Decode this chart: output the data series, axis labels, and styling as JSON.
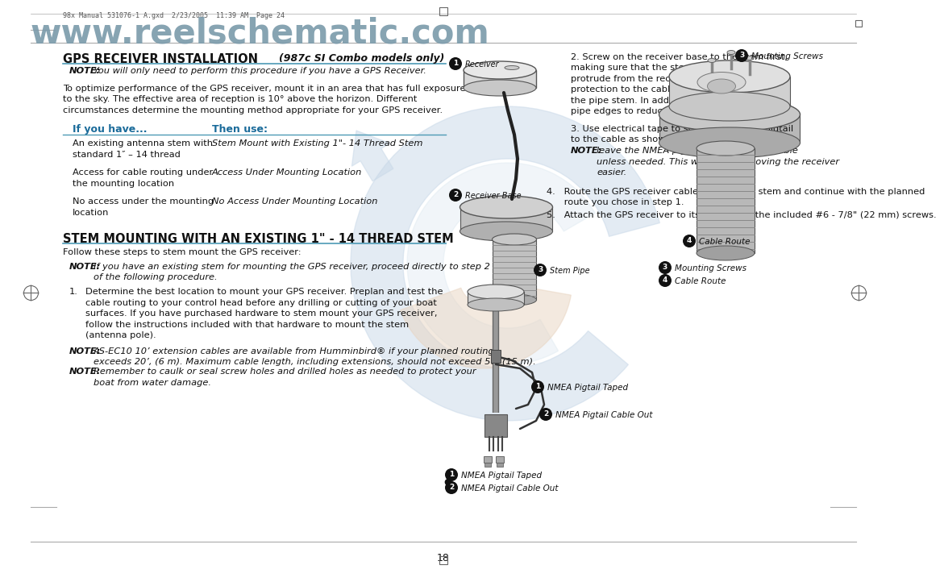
{
  "page_bg": "#ffffff",
  "header_watermark_text": "www.reelschematic.com",
  "header_watermark_color": "#7a9aaa",
  "header_file_text": "98x Manual 531076-1 A.gxd  2/23/2005  11:39 AM  Page 24",
  "header_file_color": "#555555",
  "title1": "GPS RECEIVER INSTALLATION",
  "title1_right": "(987c SI Combo models only)",
  "title2": "STEM MOUNTING WITH AN EXISTING 1\" - 14 THREAD STEM",
  "underline_color": "#4d9ab5",
  "note_label": "NOTE:",
  "note1_text": "You will only need to perform this procedure if you have a GPS Receiver.",
  "body1_line1": "To optimize performance of the GPS receiver, mount it in an area that has full exposure",
  "body1_line2": "to the sky. The effective area of reception is 10° above the horizon. Different",
  "body1_line3": "circumstances determine the mounting method appropriate for your GPS receiver.",
  "table_header_left": "If you have...",
  "table_header_right": "Then use:",
  "table_header_color": "#1a6b9a",
  "table_rows": [
    [
      "An existing antenna stem with",
      "Stem Mount with Existing 1\"- 14 Thread Stem",
      "standard 1\" – 14 thread",
      ""
    ],
    [
      "Access for cable routing under",
      "Access Under Mounting Location",
      "the mounting location",
      ""
    ],
    [
      "No access under the mounting",
      "No Access Under Mounting Location",
      "location",
      ""
    ]
  ],
  "stem_note_text": "Follow these steps to stem mount the GPS receiver:",
  "note2_line1": "If you have an existing stem for mounting the GPS receiver, proceed directly to step 2",
  "note2_line2": "of the following procedure.",
  "step1_lines": [
    "Determine the best location to mount your GPS receiver. Preplan and test the",
    "cable routing to your control head before any drilling or cutting of your boat",
    "surfaces. If you have purchased hardware to stem mount your GPS receiver,",
    "follow the instructions included with that hardware to mount the stem",
    "(antenna pole)."
  ],
  "note3_line1": "AS-EC10 10’ extension cables are available from Humminbird® if your planned routing",
  "note3_line2": "exceeds 20’, (6 m). Maximum cable length, including extensions, should not exceed 50’ (15 m).",
  "note4_line1": "Remember to caulk or seal screw holes and drilled holes as needed to protect your",
  "note4_line2": "boat from water damage.",
  "right_para2_lines": [
    "2. Screw on the receiver base to the stem first,",
    "making sure that the stem pipe does not",
    "protrude from the receiver base. This adds",
    "protection to the cable when pulling it through",
    "the pipe stem. In addition to this, de-burr the",
    "pipe edges to reduce cable abrasion."
  ],
  "right_para3_line1": "3. Use electrical tape to secure the NMEA pigtail",
  "right_para3_line2": "to the cable as shown.",
  "right_note_lines": [
    "leave the NMEA pigtail secured to the cable",
    "unless needed. This will make removing the receiver",
    "easier."
  ],
  "right_para4": "4.   Route the GPS receiver cable through the stem and continue with the planned",
  "right_para4b": "      route you chose in step 1.",
  "right_para5": "5.   Attach the GPS receiver to its base using the included #6 - 7/8\" (22 mm) screws.",
  "label1": "Receiver",
  "label2": "Receiver Base",
  "label3": "Stem Pipe",
  "label_bottom1": "NMEA Pigtail Taped",
  "label_bottom2": "NMEA Pigtail Cable Out",
  "label_bottom3": "Mounting Screws",
  "label_bottom4": "Cable Route",
  "page_number": "18",
  "bg_wm_color": "#c8d8e8",
  "bg_wm_color2": "#dce8f0",
  "bg_wm_peach": "#e8d4c0"
}
